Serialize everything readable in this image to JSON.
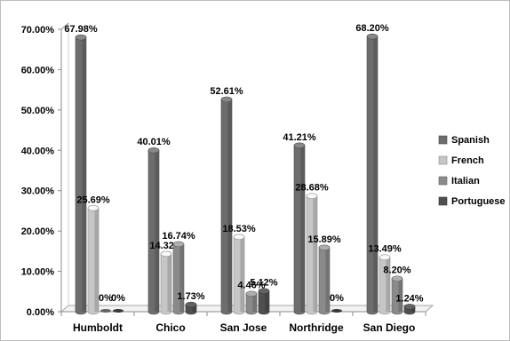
{
  "chart_data": {
    "type": "bar",
    "style": "3d-clustered-column",
    "categories": [
      "Humboldt",
      "Chico",
      "San Jose",
      "Northridge",
      "San Diego"
    ],
    "series": [
      {
        "name": "Spanish",
        "color": "#6d6d6d",
        "values": [
          67.98,
          40.01,
          52.61,
          41.21,
          68.2
        ]
      },
      {
        "name": "French",
        "color": "#c6c6c6",
        "values": [
          25.69,
          14.32,
          18.53,
          28.68,
          13.49
        ]
      },
      {
        "name": "Italian",
        "color": "#8a8a8a",
        "values": [
          0,
          16.74,
          4.46,
          15.89,
          8.2
        ]
      },
      {
        "name": "Portuguese",
        "color": "#4f4f4f",
        "values": [
          0,
          1.73,
          5.12,
          0,
          1.24
        ]
      }
    ],
    "data_labels": [
      [
        "67.98%",
        "40.01%",
        "52.61%",
        "41.21%",
        "68.20%"
      ],
      [
        "25.69%",
        "14.32%",
        "18.53%",
        "28.68%",
        "13.49%"
      ],
      [
        "0%",
        "16.74%",
        "4.46%",
        "15.89%",
        "8.20%"
      ],
      [
        "0%",
        "1.73%",
        "5.12%",
        "0%",
        "1.24%"
      ]
    ],
    "y_ticks": [
      "0.00%",
      "10.00%",
      "20.00%",
      "30.00%",
      "40.00%",
      "50.00%",
      "60.00%",
      "70.00%"
    ],
    "ylim": [
      0,
      70
    ],
    "title": "",
    "xlabel": "",
    "ylabel": "",
    "grid": false,
    "legend_position": "right"
  }
}
